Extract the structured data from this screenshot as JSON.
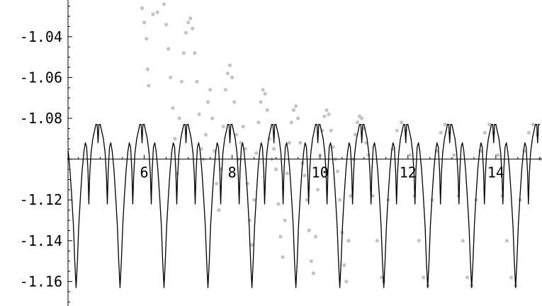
{
  "chart_data": {
    "type": "scatter",
    "title": "",
    "xlabel": "",
    "ylabel": "",
    "xlim": [
      4.25,
      15.05
    ],
    "ylim": [
      -1.172,
      -1.022
    ],
    "axis_cross_y": -1.1,
    "grid": false,
    "legend": "none",
    "xticks": [
      {
        "value": 6,
        "label": "6"
      },
      {
        "value": 8,
        "label": "8"
      },
      {
        "value": 10,
        "label": "10"
      },
      {
        "value": 12,
        "label": "12"
      },
      {
        "value": 14,
        "label": "14"
      }
    ],
    "yticks": [
      {
        "value": -1.04,
        "label": "-1.04"
      },
      {
        "value": -1.06,
        "label": "-1.06"
      },
      {
        "value": -1.08,
        "label": "-1.08"
      },
      {
        "value": -1.12,
        "label": "-1.12"
      },
      {
        "value": -1.14,
        "label": "-1.14"
      },
      {
        "value": -1.16,
        "label": "-1.16"
      }
    ],
    "series": [
      {
        "kind": "line",
        "color": "#000000",
        "period": 1.0,
        "phase": 4.45,
        "x_start": 4.25,
        "x_end": 15.0,
        "profile": [
          [
            0.0,
            -1.163
          ],
          [
            0.03,
            -1.15
          ],
          [
            0.06,
            -1.133
          ],
          [
            0.1,
            -1.118
          ],
          [
            0.14,
            -1.105
          ],
          [
            0.18,
            -1.096
          ],
          [
            0.21,
            -1.092
          ],
          [
            0.24,
            -1.094
          ],
          [
            0.27,
            -1.106
          ],
          [
            0.29,
            -1.122
          ],
          [
            0.31,
            -1.108
          ],
          [
            0.34,
            -1.097
          ],
          [
            0.38,
            -1.09
          ],
          [
            0.42,
            -1.086
          ],
          [
            0.45,
            -1.083
          ],
          [
            0.48,
            -1.083
          ],
          [
            0.5,
            -1.092
          ],
          [
            0.52,
            -1.083
          ],
          [
            0.55,
            -1.083
          ],
          [
            0.58,
            -1.086
          ],
          [
            0.62,
            -1.09
          ],
          [
            0.66,
            -1.097
          ],
          [
            0.69,
            -1.108
          ],
          [
            0.71,
            -1.122
          ],
          [
            0.73,
            -1.106
          ],
          [
            0.76,
            -1.094
          ],
          [
            0.79,
            -1.092
          ],
          [
            0.82,
            -1.096
          ],
          [
            0.86,
            -1.105
          ],
          [
            0.9,
            -1.118
          ],
          [
            0.94,
            -1.133
          ],
          [
            0.97,
            -1.15
          ],
          [
            1.0,
            -1.163
          ]
        ]
      },
      {
        "kind": "scatter",
        "color": "#c4c4c4",
        "points": [
          [
            5.95,
            -1.026
          ],
          [
            6.0,
            -1.033
          ],
          [
            6.05,
            -1.041
          ],
          [
            6.08,
            -1.056
          ],
          [
            6.1,
            -1.064
          ],
          [
            6.2,
            -1.029
          ],
          [
            6.3,
            -1.028
          ],
          [
            6.45,
            -1.024
          ],
          [
            6.5,
            -1.034
          ],
          [
            6.55,
            -1.046
          ],
          [
            6.6,
            -1.06
          ],
          [
            6.65,
            -1.075
          ],
          [
            6.7,
            -1.09
          ],
          [
            6.75,
            -1.107
          ],
          [
            6.8,
            -1.08
          ],
          [
            6.85,
            -1.062
          ],
          [
            6.9,
            -1.048
          ],
          [
            6.95,
            -1.038
          ],
          [
            7.0,
            -1.033
          ],
          [
            7.05,
            -1.031
          ],
          [
            7.1,
            -1.036
          ],
          [
            7.15,
            -1.048
          ],
          [
            7.2,
            -1.062
          ],
          [
            7.25,
            -1.078
          ],
          [
            7.3,
            -1.095
          ],
          [
            7.35,
            -1.1
          ],
          [
            7.4,
            -1.088
          ],
          [
            7.45,
            -1.072
          ],
          [
            7.5,
            -1.066
          ],
          [
            7.55,
            -1.08
          ],
          [
            7.6,
            -1.096
          ],
          [
            7.65,
            -1.112
          ],
          [
            7.7,
            -1.125
          ],
          [
            7.75,
            -1.105
          ],
          [
            7.8,
            -1.084
          ],
          [
            7.85,
            -1.066
          ],
          [
            7.9,
            -1.058
          ],
          [
            7.95,
            -1.054
          ],
          [
            8.0,
            -1.06
          ],
          [
            8.05,
            -1.072
          ],
          [
            8.1,
            -1.088
          ],
          [
            8.15,
            -1.1
          ],
          [
            8.2,
            -1.092
          ],
          [
            8.25,
            -1.084
          ],
          [
            8.3,
            -1.095
          ],
          [
            8.35,
            -1.112
          ],
          [
            8.4,
            -1.13
          ],
          [
            8.45,
            -1.142
          ],
          [
            8.5,
            -1.12
          ],
          [
            8.55,
            -1.097
          ],
          [
            8.6,
            -1.082
          ],
          [
            8.65,
            -1.072
          ],
          [
            8.7,
            -1.066
          ],
          [
            8.75,
            -1.068
          ],
          [
            8.8,
            -1.076
          ],
          [
            8.85,
            -1.09
          ],
          [
            8.9,
            -1.1
          ],
          [
            8.95,
            -1.095
          ],
          [
            9.0,
            -1.105
          ],
          [
            9.05,
            -1.122
          ],
          [
            9.1,
            -1.138
          ],
          [
            9.15,
            -1.148
          ],
          [
            9.2,
            -1.13
          ],
          [
            9.25,
            -1.107
          ],
          [
            9.3,
            -1.092
          ],
          [
            9.35,
            -1.082
          ],
          [
            9.4,
            -1.076
          ],
          [
            9.45,
            -1.074
          ],
          [
            9.5,
            -1.08
          ],
          [
            9.55,
            -1.092
          ],
          [
            9.6,
            -1.102
          ],
          [
            9.65,
            -1.108
          ],
          [
            9.7,
            -1.12
          ],
          [
            9.75,
            -1.135
          ],
          [
            9.8,
            -1.15
          ],
          [
            9.85,
            -1.156
          ],
          [
            9.9,
            -1.138
          ],
          [
            9.95,
            -1.115
          ],
          [
            10.0,
            -1.098
          ],
          [
            10.05,
            -1.086
          ],
          [
            10.1,
            -1.079
          ],
          [
            10.15,
            -1.076
          ],
          [
            10.2,
            -1.078
          ],
          [
            10.25,
            -1.086
          ],
          [
            10.3,
            -1.094
          ],
          [
            10.35,
            -1.1
          ],
          [
            10.4,
            -1.106
          ],
          [
            10.45,
            -1.12
          ],
          [
            10.5,
            -1.136
          ],
          [
            10.55,
            -1.152
          ],
          [
            10.6,
            -1.16
          ],
          [
            10.65,
            -1.14
          ],
          [
            10.7,
            -1.118
          ],
          [
            10.75,
            -1.1
          ],
          [
            10.8,
            -1.088
          ],
          [
            10.85,
            -1.082
          ],
          [
            10.9,
            -1.079
          ],
          [
            10.95,
            -1.08
          ],
          [
            11.0,
            -1.085
          ],
          [
            11.05,
            -1.092
          ],
          [
            11.1,
            -1.098
          ],
          [
            11.2,
            -1.118
          ],
          [
            11.3,
            -1.14
          ],
          [
            11.4,
            -1.158
          ],
          [
            11.45,
            -1.16
          ],
          [
            11.55,
            -1.12
          ],
          [
            11.65,
            -1.095
          ],
          [
            11.75,
            -1.086
          ],
          [
            11.85,
            -1.082
          ],
          [
            11.95,
            -1.086
          ],
          [
            12.05,
            -1.098
          ],
          [
            12.15,
            -1.118
          ],
          [
            12.25,
            -1.14
          ],
          [
            12.35,
            -1.158
          ],
          [
            12.45,
            -1.162
          ],
          [
            12.55,
            -1.12
          ],
          [
            12.65,
            -1.096
          ],
          [
            12.75,
            -1.087
          ],
          [
            12.85,
            -1.083
          ],
          [
            12.95,
            -1.087
          ],
          [
            13.05,
            -1.098
          ],
          [
            13.15,
            -1.118
          ],
          [
            13.25,
            -1.14
          ],
          [
            13.35,
            -1.158
          ],
          [
            13.45,
            -1.162
          ],
          [
            13.55,
            -1.12
          ],
          [
            13.65,
            -1.096
          ],
          [
            13.75,
            -1.087
          ],
          [
            13.85,
            -1.083
          ],
          [
            13.95,
            -1.087
          ],
          [
            14.05,
            -1.098
          ],
          [
            14.15,
            -1.118
          ],
          [
            14.25,
            -1.14
          ],
          [
            14.35,
            -1.158
          ],
          [
            14.45,
            -1.162
          ],
          [
            14.55,
            -1.12
          ],
          [
            14.65,
            -1.096
          ],
          [
            14.75,
            -1.087
          ],
          [
            14.85,
            -1.083
          ],
          [
            14.95,
            -1.088
          ],
          [
            15.0,
            -1.1
          ]
        ]
      }
    ]
  }
}
